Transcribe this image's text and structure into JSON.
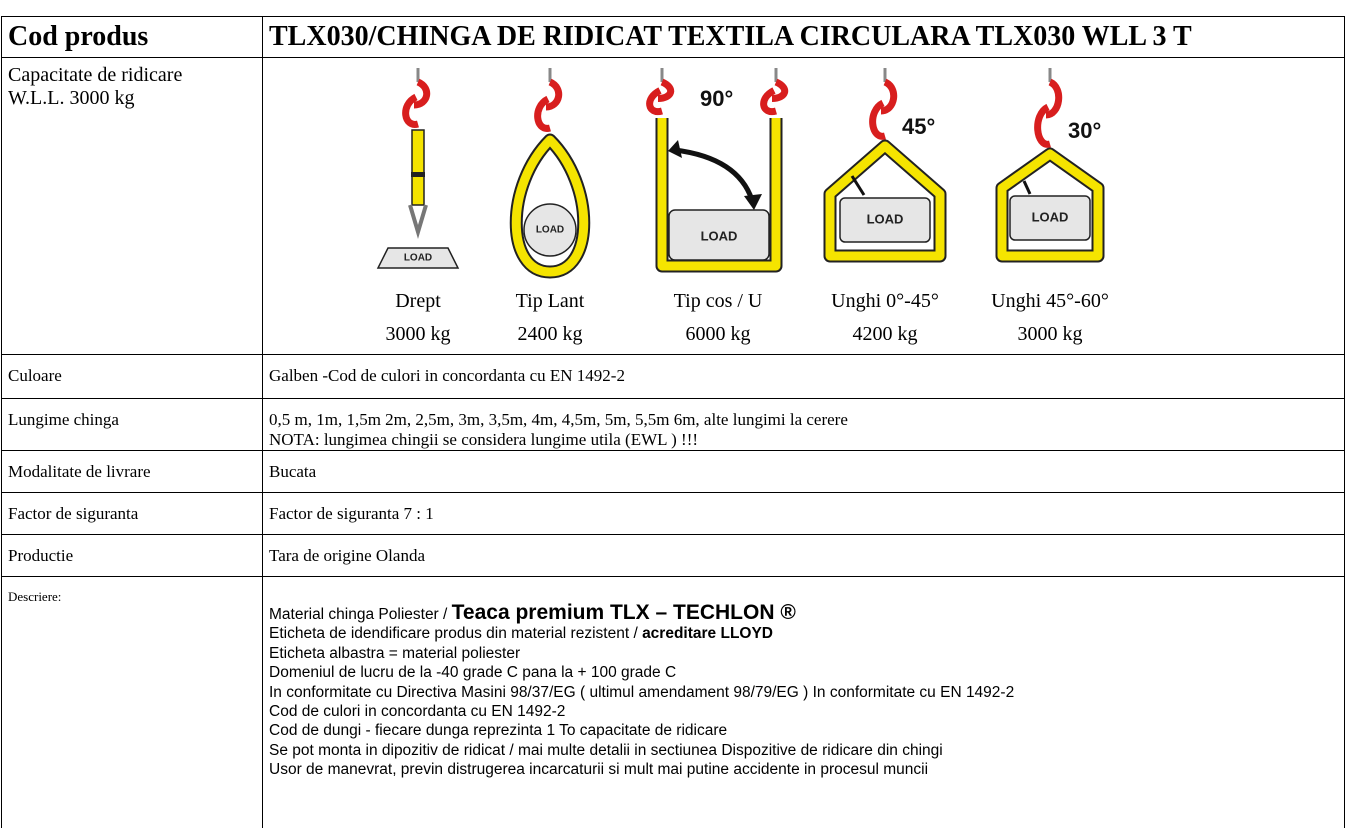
{
  "table": {
    "header": [
      "Cod produs",
      "TLX030/CHINGA DE RIDICAT TEXTILA CIRCULARA TLX030 WLL 3 T"
    ],
    "capacity": {
      "label": [
        "Capacitate de ridicare",
        "W.L.L. 3000 kg"
      ],
      "slings": [
        {
          "caption": "Drept",
          "capacity": "3000 kg",
          "load_tag": "LOAD"
        },
        {
          "caption": "Tip Lant",
          "capacity": "2400 kg",
          "load_tag": "LOAD"
        },
        {
          "caption": "Tip cos / U",
          "capacity": "6000 kg",
          "load_tag": "LOAD",
          "angle": "90°"
        },
        {
          "caption": "Unghi 0°-45°",
          "capacity": "4200 kg",
          "load_tag": "LOAD",
          "angle": "45°"
        },
        {
          "caption": "Unghi 45°-60°",
          "capacity": "3000 kg",
          "load_tag": "LOAD",
          "angle": "30°"
        }
      ]
    },
    "rows": [
      [
        "Culoare",
        [
          "Galben -Cod de culori in concordanta cu EN 1492-2"
        ]
      ],
      [
        "Lungime chinga",
        [
          "0,5 m, 1m, 1,5m 2m, 2,5m, 3m, 3,5m, 4m, 4,5m, 5m, 5,5m 6m,  alte lungimi la cerere",
          "NOTA: lungimea chingii se considera lungime utila (EWL ) !!!"
        ]
      ],
      [
        "Modalitate de livrare",
        [
          "Bucata"
        ]
      ],
      [
        "Factor de siguranta",
        [
          "Factor de siguranta 7 : 1"
        ]
      ],
      [
        "Productie",
        [
          "Tara de origine Olanda"
        ]
      ]
    ],
    "description": {
      "label": "Descriere:",
      "lines": [
        {
          "text": "Material chinga Poliester / ",
          "strong": "Teaca premium TLX – TECHLON ®"
        },
        {
          "text": "Eticheta de idendificare produs din material rezistent / ",
          "strong": "acreditare LLOYD"
        },
        {
          "text": "Eticheta albastra = material poliester"
        },
        {
          "text": "Domeniul de lucru de la -40 grade C pana la + 100 grade C"
        },
        {
          "text": "In conformitate cu Directiva Masini 98/37/EG ( ultimul amendament 98/79/EG ) In conformitate cu EN 1492-2"
        },
        {
          "text": "Cod de culori in concordanta cu EN 1492-2"
        },
        {
          "text": "Cod de dungi - fiecare dunga reprezinta 1 To capacitate de ridicare"
        },
        {
          "text": "Se pot monta in dipozitiv de ridicat / mai multe detalii in sectiunea Dispozitive de ridicare din chingi"
        },
        {
          "text": "Usor de manevrat, previn distrugerea incarcaturii si mult mai putine accidente in procesul muncii"
        }
      ]
    }
  }
}
